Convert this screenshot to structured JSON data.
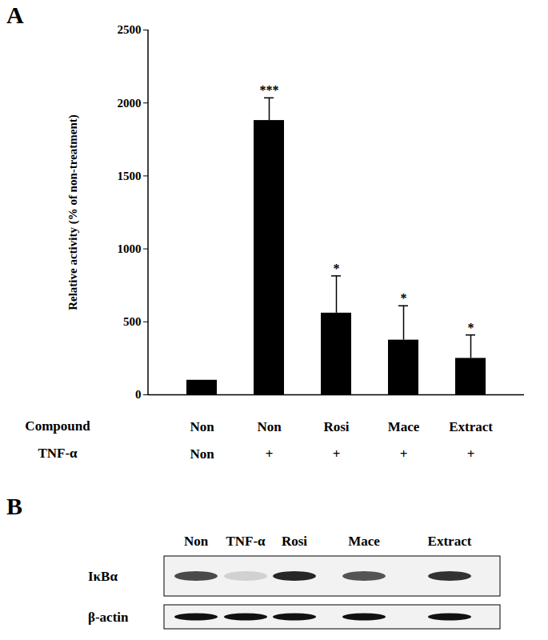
{
  "chart_data": {
    "type": "bar",
    "panel_label": "A",
    "y_label": "Relative activity (% of non-treatment)",
    "category_label": "Compound",
    "categories": [
      "Non",
      "Non",
      "Rosi",
      "Mace",
      "Extract"
    ],
    "tnf_label": "TNF-α",
    "tnf": [
      "Non",
      "+",
      "+",
      "+",
      "+"
    ],
    "values": [
      100,
      1880,
      560,
      375,
      250
    ],
    "errors": [
      0,
      155,
      255,
      235,
      160
    ],
    "significance": [
      null,
      "***",
      "*",
      "*",
      "*"
    ],
    "color": "#000000",
    "ylim": [
      0,
      2500
    ],
    "yticks": [
      0,
      500,
      1000,
      1500,
      2000,
      2500
    ]
  },
  "blot": {
    "panel_label": "B",
    "lanes": [
      "Non",
      "TNF-α",
      "Rosi",
      "Mace",
      "Extract"
    ],
    "rows": [
      {
        "label": "IκBα",
        "intensity": [
          0.75,
          0.15,
          0.9,
          0.7,
          0.85
        ]
      },
      {
        "label": "β-actin",
        "intensity": [
          1,
          1,
          1,
          1,
          1
        ]
      }
    ]
  }
}
